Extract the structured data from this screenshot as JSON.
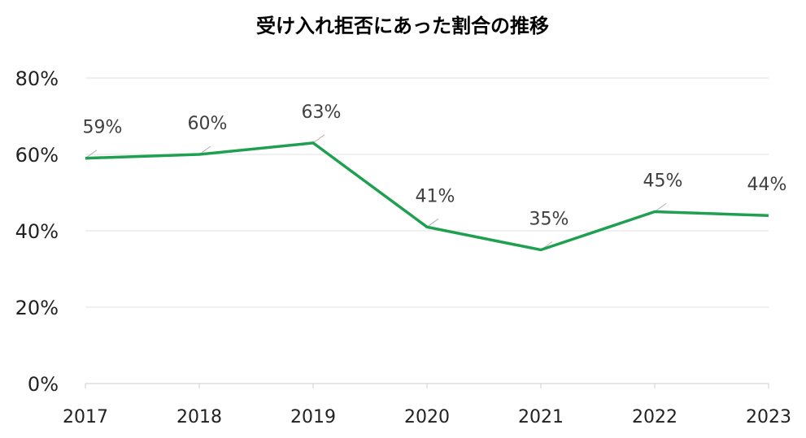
{
  "chart_data": {
    "type": "line",
    "title": "受け入れ拒否にあった割合の推移",
    "categories": [
      "2017",
      "2018",
      "2019",
      "2020",
      "2021",
      "2022",
      "2023"
    ],
    "series": [
      {
        "values": [
          59,
          60,
          63,
          41,
          35,
          45,
          44
        ],
        "color": "#1fa050"
      }
    ],
    "data_labels": [
      "59%",
      "60%",
      "63%",
      "41%",
      "35%",
      "45%",
      "44%"
    ],
    "yticks": [
      "0%",
      "20%",
      "40%",
      "60%",
      "80%"
    ],
    "ylim": [
      0,
      80
    ],
    "xlabel": "",
    "ylabel": "",
    "grid": true,
    "legend": "none"
  }
}
